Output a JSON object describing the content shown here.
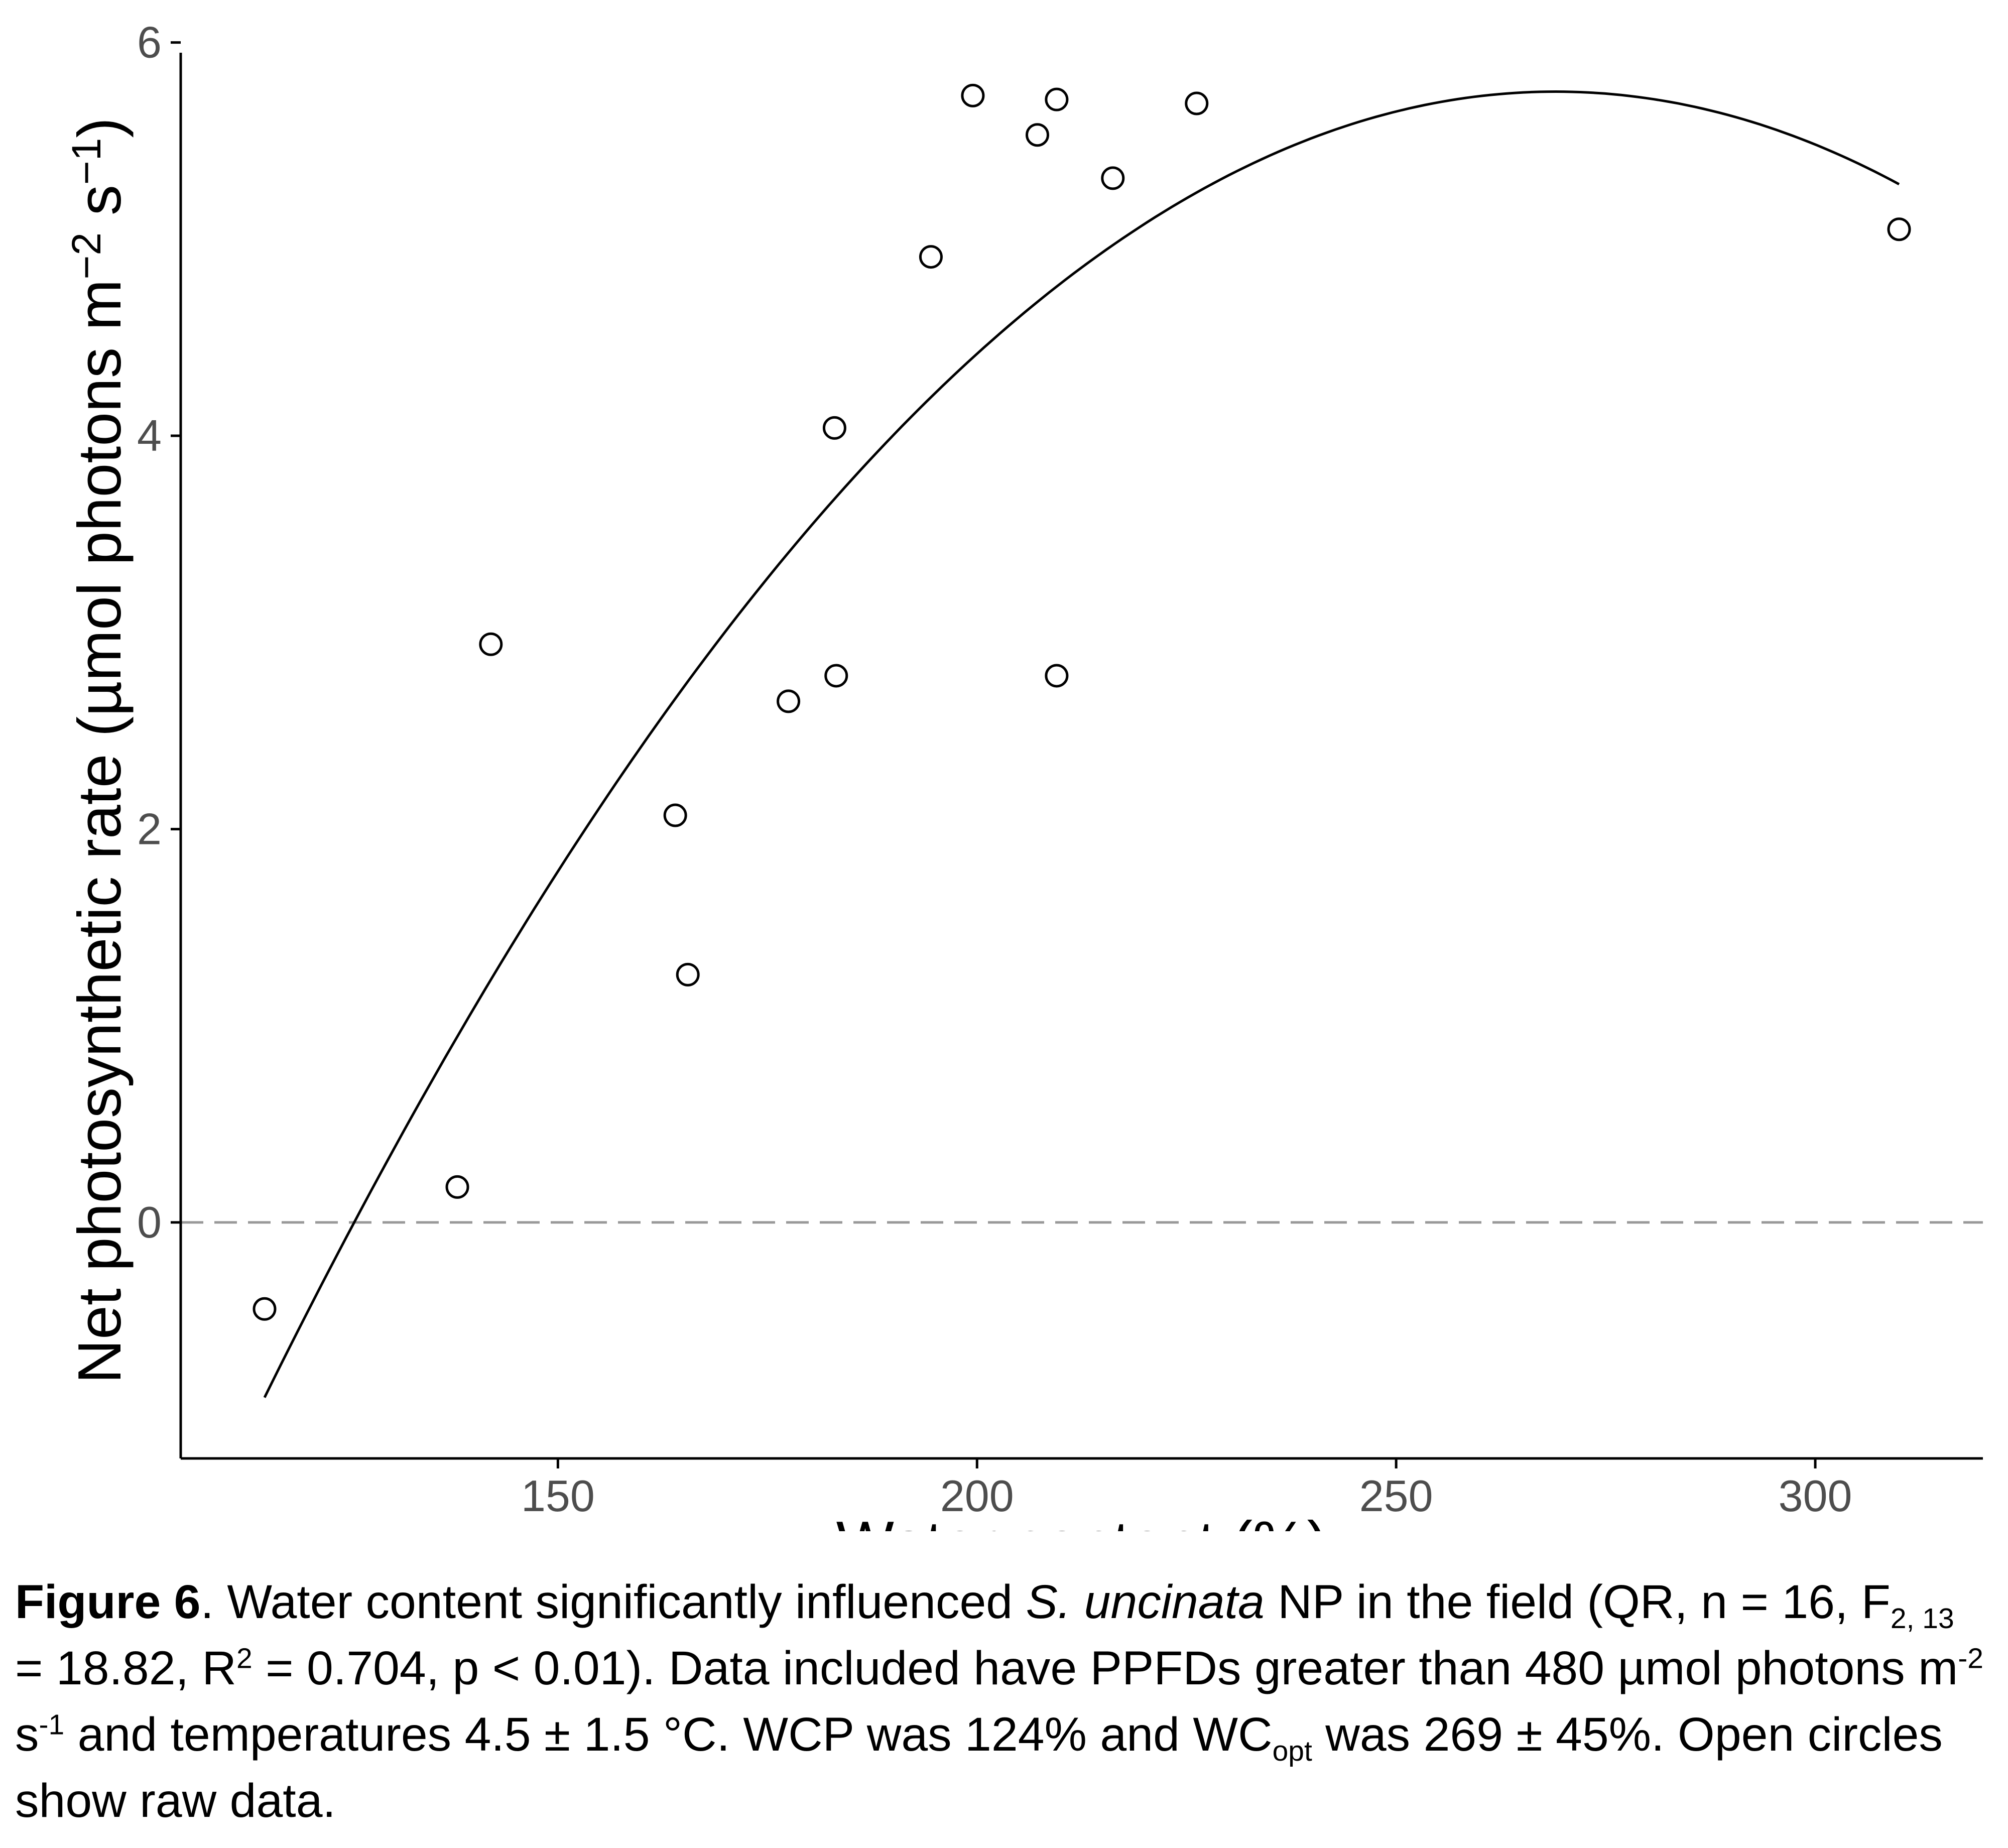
{
  "chart_data": {
    "type": "scatter",
    "xlabel": "Water content (%)",
    "ylabel_main": "Net photosynthetic rate (µmol photons m",
    "ylabel_exp1": "−2",
    "ylabel_mid": " s",
    "ylabel_exp2": "−1",
    "ylabel_end": ")",
    "xlim": [
      105,
      320
    ],
    "ylim": [
      -1.2,
      6.05
    ],
    "xticks": [
      150,
      200,
      250,
      300
    ],
    "yticks": [
      0,
      2,
      4,
      6
    ],
    "grid": false,
    "points": {
      "x": [
        115,
        138,
        142,
        164,
        165.5,
        177.5,
        183,
        183.2,
        194.5,
        199.5,
        207.2,
        209.5,
        209.5,
        216.2,
        226.2,
        310
      ],
      "y": [
        -0.44,
        0.18,
        2.94,
        2.07,
        1.26,
        2.65,
        4.04,
        2.78,
        4.91,
        5.73,
        5.53,
        5.71,
        2.78,
        5.31,
        5.69,
        5.05
      ]
    },
    "fit": {
      "type": "quadratic",
      "x_range": [
        115,
        310
      ],
      "x_intercept": 124,
      "x_opt": 269,
      "y_at_start": -0.89,
      "y_max": 5.75
    },
    "reference_line": {
      "y": 0,
      "style": "dashed",
      "color": "#999999"
    }
  },
  "caption": {
    "label": "Figure 6",
    "t1": ". Water content significantly influenced ",
    "species": "S. uncinata",
    "t2": " NP in the field (QR, n = 16, F",
    "sub1": "2, 13",
    "t3": " = 18.82, R",
    "sup1": "2",
    "t4": " = 0.704, p < 0.01). Data included have PPFDs greater than 480 µmol photons m",
    "sup2": "-2",
    "t5": " s",
    "sup3": "-1",
    "t6": " and temperatures 4.5 ± 1.5 °C. WCP was 124% and WC",
    "sub2": "opt",
    "t7": " was 269 ± 45%. Open circles show raw data."
  }
}
